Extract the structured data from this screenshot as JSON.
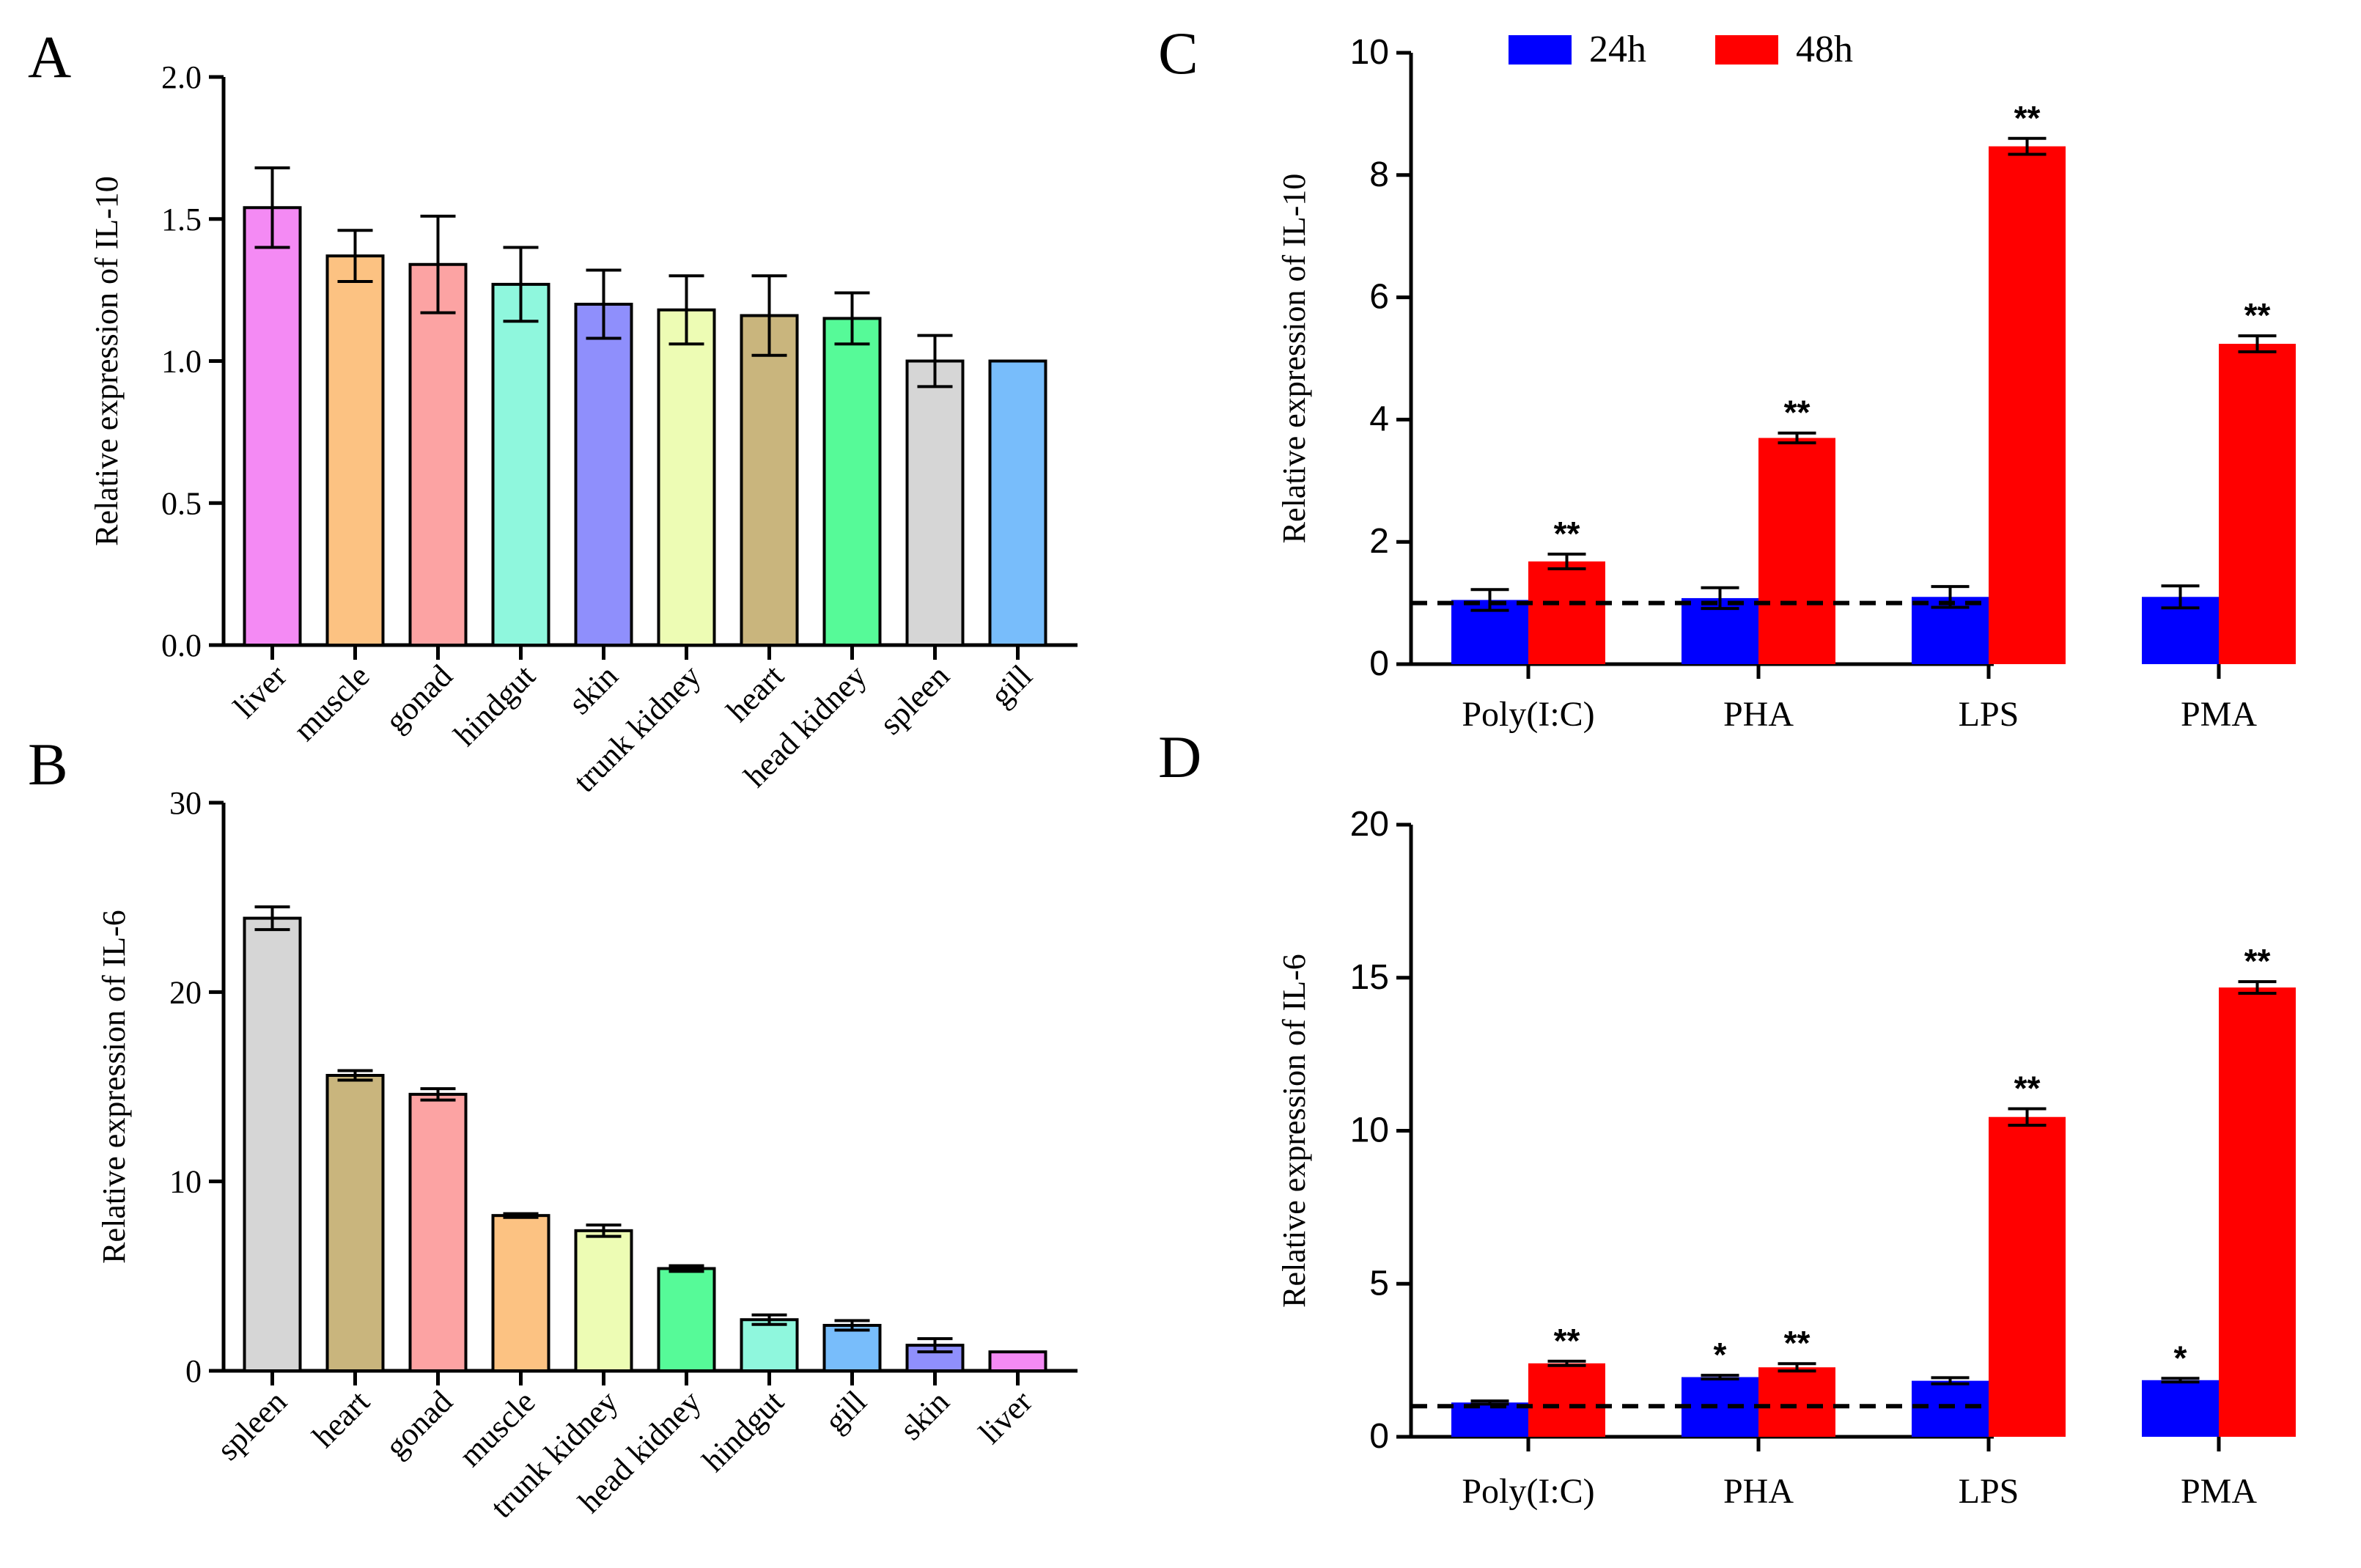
{
  "colors": {
    "series_24h": "#0000ff",
    "series_48h": "#ff0000",
    "tissue": {
      "liver": "#f48af4",
      "muscle": "#fcc282",
      "gonad": "#fca3a3",
      "hindgut": "#8ff7dd",
      "skin": "#8f8ffc",
      "trunk kidney": "#edfcb4",
      "heart": "#c9b57d",
      "head kidney": "#56fa98",
      "spleen": "#d6d6d6",
      "gill": "#78bdfb"
    }
  },
  "chart_data": [
    {
      "panel": "A",
      "type": "bar",
      "ylabel": "Relative expression of IL-10",
      "ylim": [
        0,
        2.0
      ],
      "yticks": [
        "0.0",
        "0.5",
        "1.0",
        "1.5",
        "2.0"
      ],
      "yticks_values": [
        0,
        0.5,
        1.0,
        1.5,
        2.0
      ],
      "categories": [
        "liver",
        "muscle",
        "gonad",
        "hindgut",
        "skin",
        "trunk kidney",
        "heart",
        "head kidney",
        "spleen",
        "gill"
      ],
      "values": [
        1.54,
        1.37,
        1.34,
        1.27,
        1.2,
        1.18,
        1.16,
        1.15,
        1.0,
        1.0
      ],
      "errors": [
        0.14,
        0.09,
        0.17,
        0.13,
        0.12,
        0.12,
        0.14,
        0.09,
        0.09,
        0.0
      ]
    },
    {
      "panel": "B",
      "type": "bar",
      "ylabel": "Relative expression of IL-6",
      "ylim": [
        0,
        30
      ],
      "yticks": [
        "0",
        "10",
        "20",
        "30"
      ],
      "yticks_values": [
        0,
        10,
        20,
        30
      ],
      "categories": [
        "spleen",
        "heart",
        "gonad",
        "muscle",
        "trunk kidney",
        "head kidney",
        "hindgut",
        "gill",
        "skin",
        "liver"
      ],
      "values": [
        23.9,
        15.6,
        14.6,
        8.2,
        7.4,
        5.4,
        2.7,
        2.4,
        1.35,
        1.0
      ],
      "errors": [
        0.6,
        0.25,
        0.3,
        0.1,
        0.3,
        0.15,
        0.25,
        0.25,
        0.35,
        0.0
      ]
    },
    {
      "panel": "C",
      "type": "bar",
      "ylabel": "Relative expression  of IL-10",
      "ylim": [
        0,
        10
      ],
      "yticks": [
        "0",
        "2",
        "4",
        "6",
        "8",
        "10"
      ],
      "yticks_values": [
        0,
        2,
        4,
        6,
        8,
        10
      ],
      "categories": [
        "Poly(I:C)",
        "PHA",
        "LPS",
        "PMA"
      ],
      "reference_line": 1.0,
      "series": [
        {
          "name": "24h",
          "values": [
            1.05,
            1.08,
            1.1,
            1.1
          ],
          "errors": [
            0.17,
            0.17,
            0.17,
            0.18
          ],
          "sig": [
            "",
            "",
            "",
            ""
          ]
        },
        {
          "name": "48h",
          "values": [
            1.68,
            3.7,
            8.47,
            5.24
          ],
          "errors": [
            0.12,
            0.08,
            0.13,
            0.13
          ],
          "sig": [
            "**",
            "**",
            "**",
            "**"
          ]
        }
      ]
    },
    {
      "panel": "D",
      "type": "bar",
      "ylabel": "Relative expression of IL-6",
      "ylim": [
        0,
        20
      ],
      "yticks": [
        "0",
        "5",
        "10",
        "15",
        "20"
      ],
      "yticks_values": [
        0,
        5,
        10,
        15,
        20
      ],
      "categories": [
        "Poly(I:C)",
        "PHA",
        "LPS",
        "PMA"
      ],
      "reference_line": 1.0,
      "series": [
        {
          "name": "24h",
          "values": [
            1.12,
            1.95,
            1.83,
            1.85
          ],
          "errors": [
            0.05,
            0.06,
            0.1,
            0.06
          ],
          "sig": [
            "",
            "*",
            "",
            "*"
          ]
        },
        {
          "name": "48h",
          "values": [
            2.4,
            2.27,
            10.45,
            14.68
          ],
          "errors": [
            0.07,
            0.12,
            0.27,
            0.19
          ],
          "sig": [
            "**",
            "**",
            "**",
            "**"
          ]
        }
      ]
    }
  ]
}
